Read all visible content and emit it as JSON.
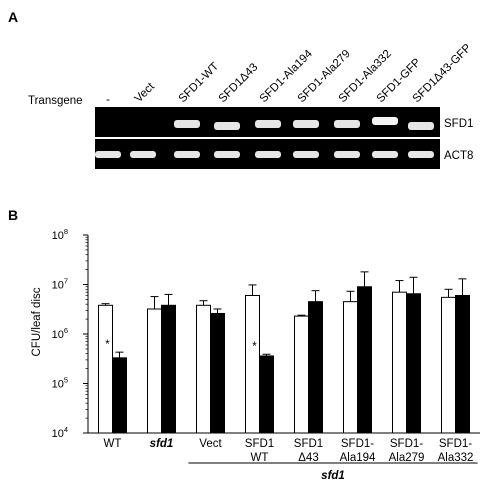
{
  "panel_a": {
    "label": "A",
    "row_label": "Transgene",
    "lanes": [
      "-",
      "Vect",
      "SFD1-WT",
      "SFD1Δ43",
      "SFD1-Ala194",
      "SFD1-Ala279",
      "SFD1-Ala332",
      "SFD1-GFP",
      "SFD1Δ43-GFP"
    ],
    "gels": [
      {
        "name": "SFD1",
        "band_presence": [
          0,
          0,
          1,
          1,
          1,
          1,
          1,
          1,
          1
        ]
      },
      {
        "name": "ACT8",
        "band_presence": [
          1,
          1,
          1,
          1,
          1,
          1,
          1,
          1,
          1
        ]
      }
    ]
  },
  "panel_b": {
    "label": "B",
    "group_label": "sfd1",
    "chart_data": {
      "type": "bar",
      "scale": "log",
      "ylabel": "CFU/leaf disc",
      "ylim_exponent": [
        4,
        8
      ],
      "ytick_base": "10",
      "yticks": [
        4,
        5,
        6,
        7,
        8
      ],
      "categories": [
        [
          "WT"
        ],
        [
          "sfd1"
        ],
        [
          "Vect"
        ],
        [
          "SFD1",
          "WT"
        ],
        [
          "SFD1",
          "Δ43"
        ],
        [
          "SFD1-",
          "Ala194"
        ],
        [
          "SFD1-",
          "Ala279"
        ],
        [
          "SFD1-",
          "Ala332"
        ]
      ],
      "series": [
        {
          "fill": "#ffffff",
          "values": [
            3800000.0,
            3200000.0,
            3800000.0,
            6000000.0,
            2300000.0,
            4500000.0,
            7000000.0,
            5500000.0
          ],
          "err": [
            300000.0,
            2500000.0,
            900000.0,
            3800000.0,
            100000.0,
            2800000.0,
            5000000.0,
            2500000.0
          ]
        },
        {
          "fill": "#000000",
          "values": [
            330000.0,
            3800000.0,
            2600000.0,
            360000.0,
            4500000.0,
            9000000.0,
            6500000.0,
            6000000.0
          ],
          "err": [
            100000.0,
            2500000.0,
            600000.0,
            30000.0,
            3000000.0,
            9000000.0,
            7500000.0,
            7000000.0
          ]
        }
      ],
      "annotations": [
        {
          "category_index": 0,
          "text": "*"
        },
        {
          "category_index": 3,
          "text": "*"
        }
      ],
      "group_bracket_categories": [
        2,
        7
      ]
    }
  }
}
